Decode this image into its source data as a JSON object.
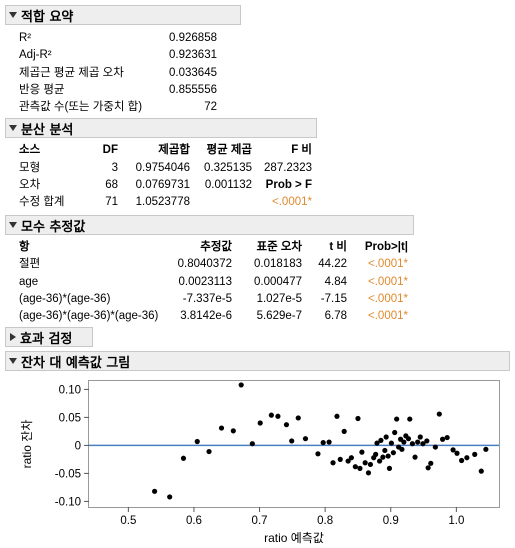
{
  "sections": {
    "summary": {
      "title": "적합 요약",
      "rows": [
        {
          "label": "R²",
          "value": "0.926858"
        },
        {
          "label": "Adj-R²",
          "value": "0.923631"
        },
        {
          "label": "제곱근 평균 제곱 오차",
          "value": "0.033645"
        },
        {
          "label": "반응 평균",
          "value": "0.855556"
        },
        {
          "label": "관측값 수(또는 가중치 합)",
          "value": "72"
        }
      ]
    },
    "anova": {
      "title": "분산 분석",
      "headers": [
        "소스",
        "DF",
        "제곱합",
        "평균 제곱",
        "F 비"
      ],
      "rows": [
        {
          "source": "모형",
          "df": "3",
          "ss": "0.9754046",
          "ms": "0.325135",
          "f": "287.2323"
        },
        {
          "source": "오차",
          "df": "68",
          "ss": "0.0769731",
          "ms": "0.001132",
          "f": "Prob > F"
        },
        {
          "source": "수정 합계",
          "df": "71",
          "ss": "1.0523778",
          "ms": "",
          "f": "<.0001*"
        }
      ]
    },
    "params": {
      "title": "모수 추정값",
      "headers": [
        "항",
        "추정값",
        "표준 오차",
        "t 비",
        "Prob>|t|"
      ],
      "rows": [
        {
          "term": "절편",
          "est": "0.8040372",
          "se": "0.018183",
          "t": "44.22",
          "p": "<.0001*"
        },
        {
          "term": "age",
          "est": "0.0023113",
          "se": "0.000477",
          "t": "4.84",
          "p": "<.0001*"
        },
        {
          "term": "(age-36)*(age-36)",
          "est": "-7.337e-5",
          "se": "1.027e-5",
          "t": "-7.15",
          "p": "<.0001*"
        },
        {
          "term": "(age-36)*(age-36)*(age-36)",
          "est": "3.8142e-6",
          "se": "5.629e-7",
          "t": "6.78",
          "p": "<.0001*"
        }
      ]
    },
    "effects": {
      "title": "효과 검정"
    },
    "residual": {
      "title": "잔차 대 예측값 그림"
    }
  },
  "colors": {
    "significant": "#e08a2e",
    "zero_line": "#4a7fc1",
    "header_bg": "#eeeeee"
  },
  "chart_data": {
    "type": "scatter",
    "xlabel": "ratio 예측값",
    "ylabel": "ratio 잔차",
    "xlim": [
      0.44,
      1.065
    ],
    "ylim": [
      -0.11,
      0.115
    ],
    "xticks": [
      0.5,
      0.6,
      0.7,
      0.8,
      0.9,
      1.0
    ],
    "xtick_labels": [
      "0.5",
      "0.6",
      "0.7",
      "0.8",
      "0.9",
      "1.0"
    ],
    "yticks": [
      0.1,
      0.05,
      0,
      -0.05,
      -0.1
    ],
    "ytick_labels": [
      "0.10",
      "0.05",
      "0",
      "-0.05",
      "-0.10"
    ],
    "reference_line_y": 0,
    "points": [
      [
        0.54,
        -0.082
      ],
      [
        0.563,
        -0.092
      ],
      [
        0.584,
        -0.023
      ],
      [
        0.605,
        0.007
      ],
      [
        0.623,
        -0.011
      ],
      [
        0.642,
        0.031
      ],
      [
        0.66,
        0.026
      ],
      [
        0.672,
        0.108
      ],
      [
        0.689,
        0.003
      ],
      [
        0.701,
        0.04
      ],
      [
        0.718,
        0.054
      ],
      [
        0.728,
        0.052
      ],
      [
        0.741,
        0.037
      ],
      [
        0.749,
        0.008
      ],
      [
        0.759,
        0.049
      ],
      [
        0.77,
        0.012
      ],
      [
        0.789,
        -0.015
      ],
      [
        0.797,
        0.005
      ],
      [
        0.806,
        0.006
      ],
      [
        0.812,
        -0.031
      ],
      [
        0.818,
        0.052
      ],
      [
        0.823,
        -0.025
      ],
      [
        0.829,
        0.025
      ],
      [
        0.835,
        -0.028
      ],
      [
        0.84,
        -0.022
      ],
      [
        0.846,
        -0.038
      ],
      [
        0.85,
        0.048
      ],
      [
        0.853,
        -0.041
      ],
      [
        0.856,
        -0.012
      ],
      [
        0.861,
        -0.031
      ],
      [
        0.866,
        -0.049
      ],
      [
        0.869,
        -0.034
      ],
      [
        0.874,
        -0.022
      ],
      [
        0.877,
        -0.016
      ],
      [
        0.879,
        0.004
      ],
      [
        0.883,
        -0.028
      ],
      [
        0.885,
        0.009
      ],
      [
        0.888,
        -0.021
      ],
      [
        0.891,
        -0.009
      ],
      [
        0.893,
        0.015
      ],
      [
        0.896,
        -0.019
      ],
      [
        0.898,
        -0.041
      ],
      [
        0.901,
        0.004
      ],
      [
        0.904,
        -0.013
      ],
      [
        0.906,
        0.023
      ],
      [
        0.909,
        0.047
      ],
      [
        0.912,
        -0.003
      ],
      [
        0.915,
        0.011
      ],
      [
        0.917,
        -0.007
      ],
      [
        0.92,
        0.006
      ],
      [
        0.923,
        0.017
      ],
      [
        0.927,
        0.012
      ],
      [
        0.929,
        0.047
      ],
      [
        0.933,
        0.003
      ],
      [
        0.937,
        -0.021
      ],
      [
        0.941,
        0.006
      ],
      [
        0.945,
        0.015
      ],
      [
        0.949,
        0.003
      ],
      [
        0.955,
        0.008
      ],
      [
        0.961,
        -0.032
      ],
      [
        0.968,
        -0.003
      ],
      [
        0.974,
        0.056
      ],
      [
        0.979,
        0.011
      ],
      [
        0.986,
        0.014
      ],
      [
        0.995,
        -0.008
      ],
      [
        1.001,
        -0.014
      ],
      [
        1.008,
        -0.027
      ],
      [
        1.016,
        -0.022
      ],
      [
        1.028,
        -0.016
      ],
      [
        1.038,
        -0.046
      ],
      [
        1.045,
        -0.007
      ],
      [
        0.957,
        -0.04
      ]
    ]
  }
}
